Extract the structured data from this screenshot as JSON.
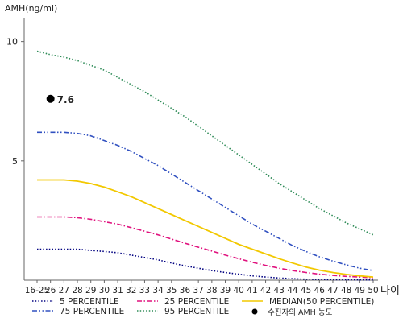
{
  "chart_data": {
    "type": "line",
    "ylabel": "AMH(ng/ml)",
    "xlabel": "나이",
    "ylim": [
      0,
      11
    ],
    "y_ticks": [
      5,
      10
    ],
    "categories": [
      "16-25",
      "26",
      "27",
      "28",
      "29",
      "30",
      "31",
      "32",
      "33",
      "34",
      "35",
      "36",
      "37",
      "38",
      "39",
      "40",
      "41",
      "42",
      "43",
      "44",
      "45",
      "46",
      "47",
      "48",
      "49",
      "50"
    ],
    "series": [
      {
        "name": "5 PERCENTILE",
        "color": "#000080",
        "dash": "dotted",
        "values": [
          1.3,
          1.3,
          1.3,
          1.3,
          1.25,
          1.2,
          1.15,
          1.05,
          0.95,
          0.85,
          0.72,
          0.6,
          0.5,
          0.4,
          0.32,
          0.25,
          0.18,
          0.13,
          0.09,
          0.06,
          0.04,
          0.03,
          0.02,
          0.02,
          0.01,
          0.01
        ]
      },
      {
        "name": "25 PERCENTILE",
        "color": "#e0127e",
        "dash": "dashdot",
        "values": [
          2.65,
          2.65,
          2.65,
          2.62,
          2.55,
          2.45,
          2.35,
          2.2,
          2.05,
          1.9,
          1.72,
          1.55,
          1.38,
          1.22,
          1.05,
          0.9,
          0.75,
          0.62,
          0.5,
          0.4,
          0.32,
          0.25,
          0.2,
          0.16,
          0.13,
          0.1
        ]
      },
      {
        "name": "MEDIAN(50 PERCENTILE)",
        "color": "#f2c800",
        "dash": "solid",
        "values": [
          4.2,
          4.2,
          4.2,
          4.15,
          4.05,
          3.9,
          3.7,
          3.5,
          3.25,
          3.0,
          2.75,
          2.5,
          2.25,
          2.0,
          1.75,
          1.5,
          1.3,
          1.1,
          0.9,
          0.72,
          0.55,
          0.42,
          0.32,
          0.24,
          0.18,
          0.13
        ]
      },
      {
        "name": "75 PERCENTILE",
        "color": "#3050c0",
        "dash": "dashdotdot",
        "values": [
          6.2,
          6.2,
          6.2,
          6.15,
          6.05,
          5.85,
          5.65,
          5.4,
          5.1,
          4.8,
          4.45,
          4.1,
          3.75,
          3.4,
          3.05,
          2.7,
          2.35,
          2.05,
          1.75,
          1.45,
          1.2,
          0.98,
          0.8,
          0.64,
          0.5,
          0.4
        ]
      },
      {
        "name": "95 PERCENTILE",
        "color": "#2e8b57",
        "dash": "dotted",
        "values": [
          9.6,
          9.45,
          9.35,
          9.2,
          9.0,
          8.8,
          8.5,
          8.2,
          7.9,
          7.55,
          7.2,
          6.85,
          6.45,
          6.05,
          5.65,
          5.25,
          4.85,
          4.45,
          4.05,
          3.7,
          3.35,
          3.0,
          2.7,
          2.4,
          2.15,
          1.9
        ]
      }
    ],
    "marker": {
      "name": "수진자의 AMH 농도",
      "category": "26",
      "value": 7.6,
      "label": "7.6",
      "color": "#000000"
    },
    "grid": false,
    "legend_position": "bottom"
  }
}
